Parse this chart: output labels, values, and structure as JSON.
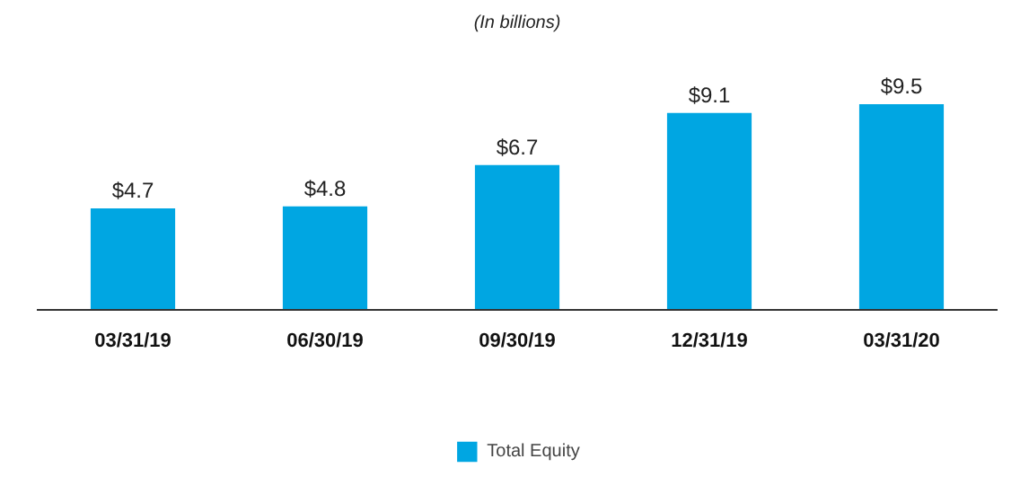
{
  "chart_data": {
    "type": "bar",
    "title": "(In billions)",
    "categories": [
      "03/31/19",
      "06/30/19",
      "09/30/19",
      "12/31/19",
      "03/31/20"
    ],
    "series": [
      {
        "name": "Total Equity",
        "color": "#00a6e2",
        "values": [
          4.7,
          4.8,
          6.7,
          9.1,
          9.5
        ],
        "value_labels": [
          "$4.7",
          "$4.8",
          "$6.7",
          "$9.1",
          "$9.5"
        ]
      }
    ],
    "legend": "bottom"
  }
}
